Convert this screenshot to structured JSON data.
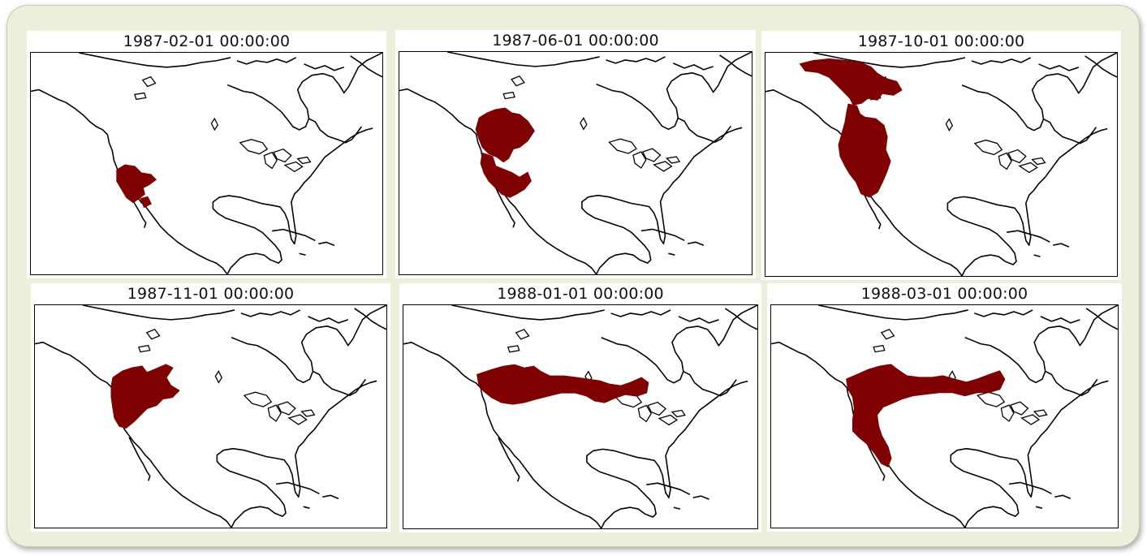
{
  "figure": {
    "region_color": "#7f0000",
    "frame_color": "#eeeedd",
    "panels": [
      {
        "title": "1987-02-01 00:00:00",
        "region": "southwest-california-nevada"
      },
      {
        "title": "1987-06-01 00:00:00",
        "region": "pacific-northwest-and-california-coast"
      },
      {
        "title": "1987-10-01 00:00:00",
        "region": "alaska-yukon-and-west-coast"
      },
      {
        "title": "1987-11-01 00:00:00",
        "region": "pacific-northwest-and-british-columbia"
      },
      {
        "title": "1988-01-01 00:00:00",
        "region": "southern-canada-band-to-great-lakes"
      },
      {
        "title": "1988-03-01 00:00:00",
        "region": "canada-band-and-west-coast"
      }
    ]
  }
}
